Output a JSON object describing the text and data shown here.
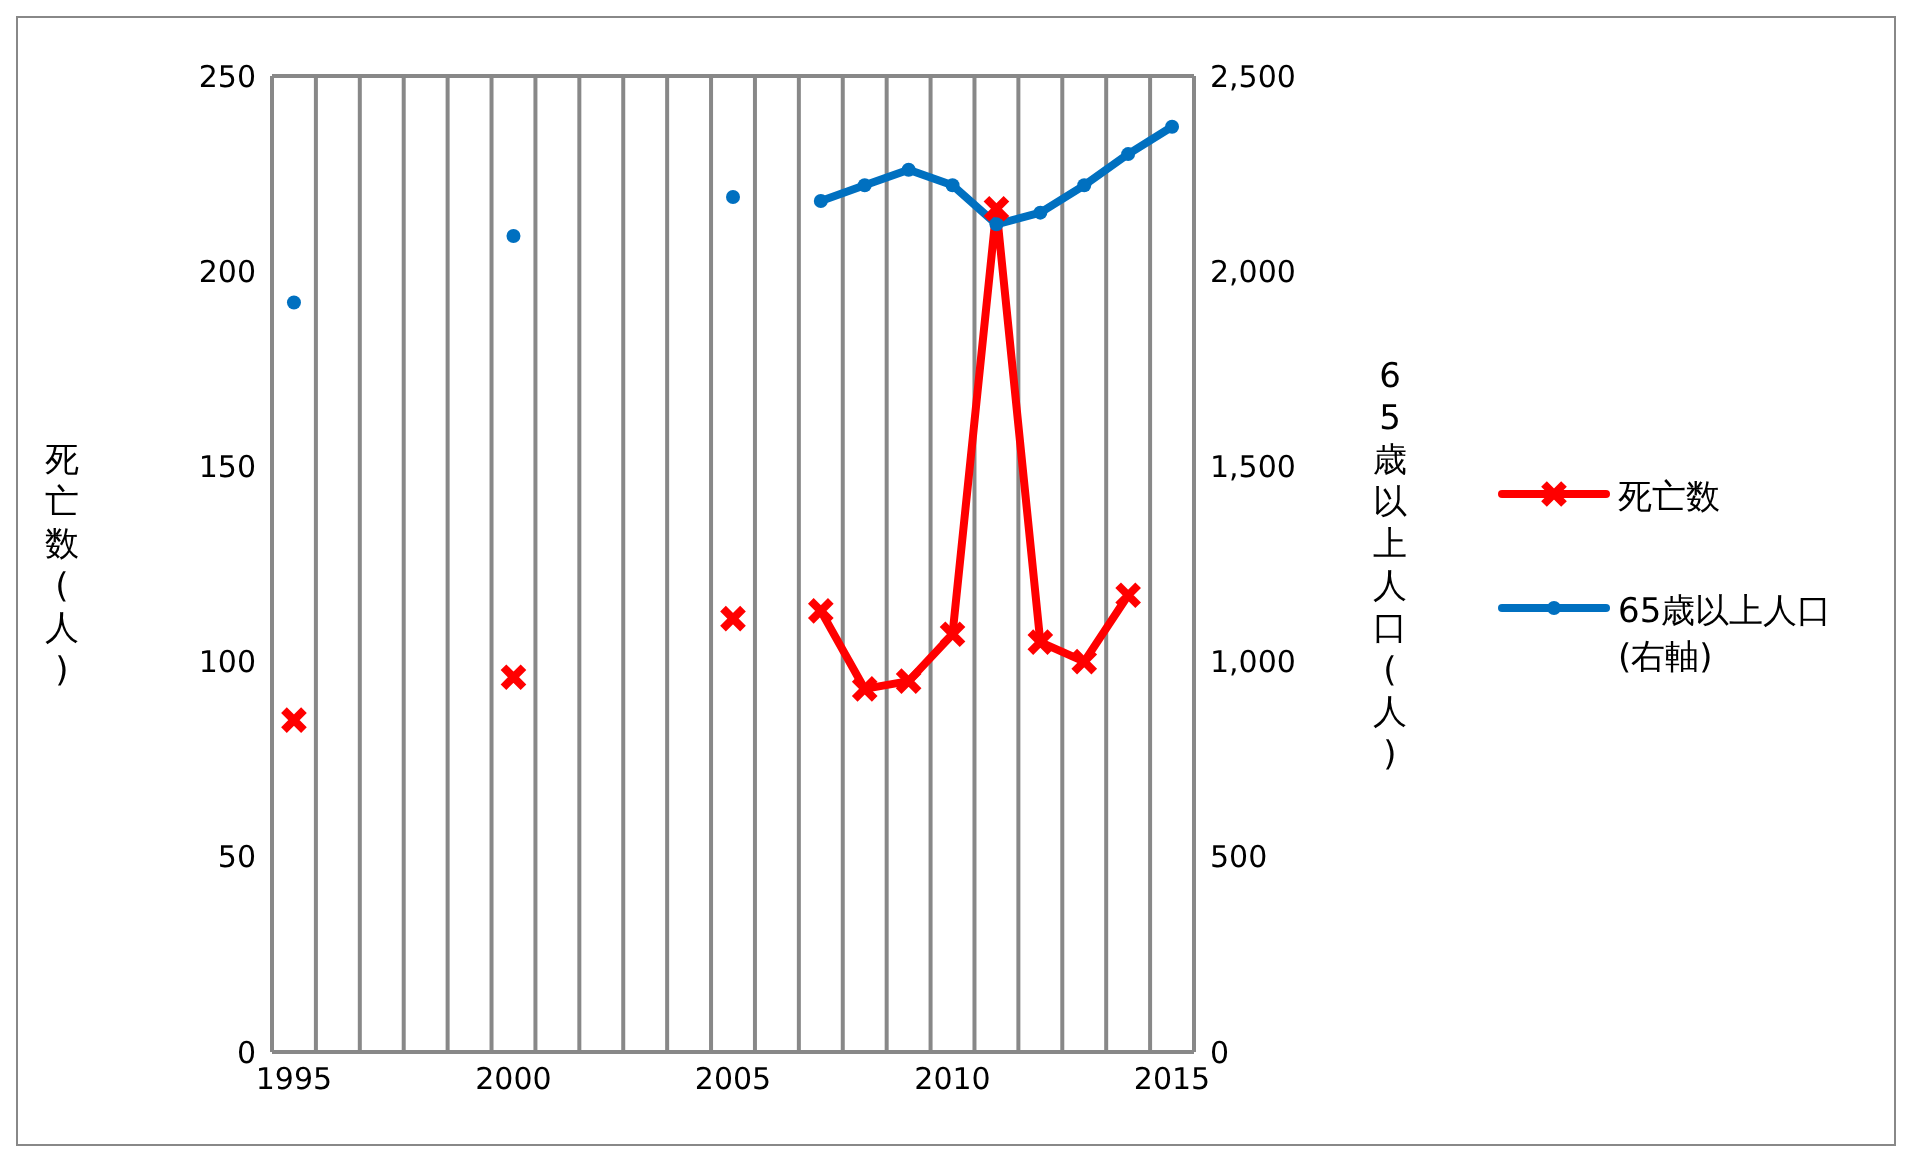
{
  "chart_data": {
    "type": "line",
    "categories": [
      "1995",
      null,
      null,
      null,
      null,
      "2000",
      null,
      null,
      null,
      null,
      "2005",
      null,
      null,
      null,
      null,
      "2010",
      null,
      null,
      null,
      null,
      "2015"
    ],
    "ylabel": "死亡数(人)",
    "y2label": "65歳以上人口(人)",
    "ylim": [
      0,
      250
    ],
    "yticks": [
      0,
      50,
      100,
      150,
      200,
      250
    ],
    "y2lim": [
      0,
      2500
    ],
    "y2ticks": [
      {
        "value": 0,
        "label": "0"
      },
      {
        "value": 500,
        "label": "500"
      },
      {
        "value": 1000,
        "label": "1,000"
      },
      {
        "value": 1500,
        "label": "1,500"
      },
      {
        "value": 2000,
        "label": "2,000"
      },
      {
        "value": 2500,
        "label": "2,500"
      }
    ],
    "grid": true,
    "legend": "right",
    "series": [
      {
        "name": "死亡数",
        "color": "#ff0000",
        "marker": "cross",
        "values": [
          85,
          null,
          null,
          null,
          null,
          96,
          null,
          null,
          null,
          null,
          111,
          null,
          113,
          93,
          95,
          107,
          216,
          105,
          100,
          117,
          null
        ]
      },
      {
        "name": "65歳以上人口(右軸)",
        "color": "#0070c0",
        "marker": "circle",
        "axis": "y2",
        "values": [
          1920,
          null,
          null,
          null,
          null,
          2090,
          null,
          null,
          null,
          null,
          2190,
          null,
          2180,
          2220,
          2260,
          2220,
          2120,
          2150,
          2220,
          2300,
          2370
        ]
      }
    ]
  }
}
